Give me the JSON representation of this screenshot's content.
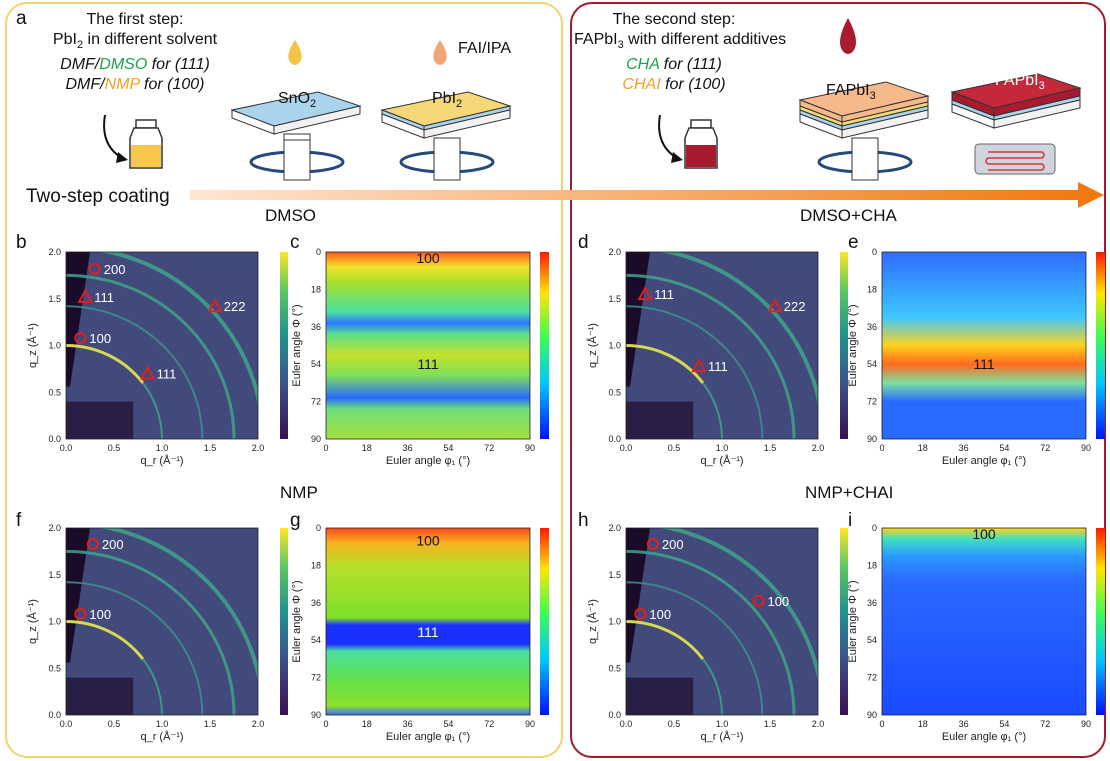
{
  "letters": {
    "a": "a",
    "b": "b",
    "c": "c",
    "d": "d",
    "e": "e",
    "f": "f",
    "g": "g",
    "h": "h",
    "i": "i"
  },
  "step1": {
    "line1": "The first step:",
    "line2_pre": "PbI",
    "line2_sub": "2",
    "line2_post": " in different solvent",
    "line3_a": "DMF/",
    "line3_b": "DMSO",
    "line3_c": " for (111)",
    "line4_a": "DMF/",
    "line4_b": "NMP",
    "line4_c": " for (100)"
  },
  "step2": {
    "line1": "The second step:",
    "line2_pre": "FAPbI",
    "line2_sub": "3",
    "line2_post": " with different additives",
    "line3_a": "CHA",
    "line3_c": " for (111)",
    "line4_a": "CHAI",
    "line4_c": " for (100)"
  },
  "substrates": {
    "sno2": "SnO",
    "sno2_sub": "2",
    "pbi2": "PbI",
    "pbi2_sub": "2",
    "fai_ipa": "FAI/IPA",
    "fapbi3_a": "FAPbI",
    "fapbi3_a_sub": "3",
    "fapbi3_b": "FAPbI",
    "fapbi3_b_sub": "3"
  },
  "arrow_label": "Two-step coating",
  "section_titles": {
    "dmso": "DMSO",
    "dmso_cha": "DMSO+CHA",
    "nmp": "NMP",
    "nmp_chai": "NMP+CHAI"
  },
  "giwaxs_axes": {
    "ylabel": "q_z (Å⁻¹)",
    "xlabel": "q_r (Å⁻¹)",
    "yticks": [
      "0.0",
      "0.5",
      "1.0",
      "1.5",
      "2.0"
    ],
    "xticks": [
      "0.0",
      "0.5",
      "1.0",
      "1.5",
      "2.0"
    ]
  },
  "pole_axes": {
    "ylabel": "Euler angle Φ (°)",
    "xlabel": "Euler angle φ₁ (°)",
    "ticks": [
      "0",
      "18",
      "36",
      "54",
      "72",
      "90"
    ]
  },
  "giwaxs_panels": {
    "b": {
      "peaks": [
        {
          "label": "200",
          "q_r": 0.3,
          "q_z": 1.82,
          "marker": "circle"
        },
        {
          "label": "111",
          "q_r": 0.2,
          "q_z": 1.52,
          "marker": "triangle"
        },
        {
          "label": "100",
          "q_r": 0.15,
          "q_z": 1.08,
          "marker": "circle"
        },
        {
          "label": "111",
          "q_r": 0.85,
          "q_z": 0.7,
          "marker": "triangle"
        },
        {
          "label": "222",
          "q_r": 1.55,
          "q_z": 1.42,
          "marker": "triangle"
        }
      ]
    },
    "d": {
      "peaks": [
        {
          "label": "111",
          "q_r": 0.2,
          "q_z": 1.55,
          "marker": "triangle"
        },
        {
          "label": "111",
          "q_r": 0.76,
          "q_z": 0.78,
          "marker": "triangle"
        },
        {
          "label": "222",
          "q_r": 1.55,
          "q_z": 1.42,
          "marker": "triangle"
        }
      ]
    },
    "f": {
      "peaks": [
        {
          "label": "200",
          "q_r": 0.28,
          "q_z": 1.83,
          "marker": "circle"
        },
        {
          "label": "100",
          "q_r": 0.15,
          "q_z": 1.08,
          "marker": "circle"
        }
      ]
    },
    "h": {
      "peaks": [
        {
          "label": "200",
          "q_r": 0.28,
          "q_z": 1.83,
          "marker": "circle"
        },
        {
          "label": "100",
          "q_r": 0.15,
          "q_z": 1.08,
          "marker": "circle"
        },
        {
          "label": "100",
          "q_r": 1.38,
          "q_z": 1.22,
          "marker": "circle"
        }
      ]
    }
  },
  "pole_panels": {
    "c": {
      "labels": [
        {
          "text": "100",
          "phi1": 45,
          "Phi": 3,
          "color": "#111"
        },
        {
          "text": "111",
          "phi1": 45,
          "Phi": 54,
          "color": "#111"
        }
      ]
    },
    "e": {
      "labels": [
        {
          "text": "111",
          "phi1": 45,
          "Phi": 54,
          "color": "#111"
        }
      ]
    },
    "g": {
      "labels": [
        {
          "text": "100",
          "phi1": 45,
          "Phi": 6,
          "color": "#111"
        },
        {
          "text": "111",
          "phi1": 45,
          "Phi": 50,
          "color": "#ffffff"
        }
      ]
    },
    "i": {
      "labels": [
        {
          "text": "100",
          "phi1": 45,
          "Phi": 3,
          "color": "#111"
        }
      ]
    }
  },
  "colors": {
    "left_border": "#f5d36a",
    "right_border": "#a01c2c",
    "arrow_start": "#ffe3d0",
    "arrow_end": "#f07a10",
    "marker": "#e02020",
    "green": "#1aa34a",
    "orange": "#f0a020"
  }
}
